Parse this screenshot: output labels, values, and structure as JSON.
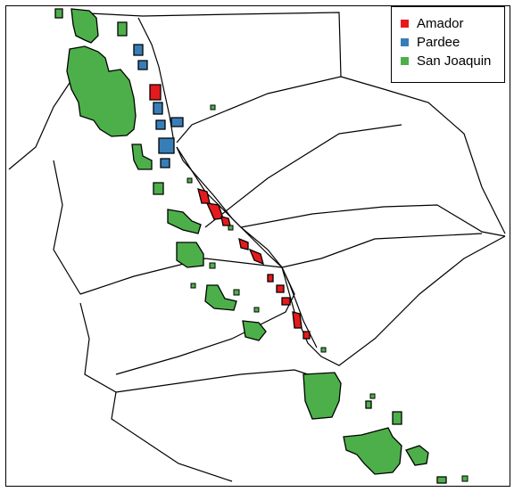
{
  "legend": {
    "items": [
      {
        "label": "Amador",
        "color": "#e41a1c"
      },
      {
        "label": "Pardee",
        "color": "#377eb8"
      },
      {
        "label": "San Joaquin",
        "color": "#4daf4a"
      }
    ]
  },
  "colors": {
    "background": "#ffffff",
    "boundary": "#000000"
  }
}
